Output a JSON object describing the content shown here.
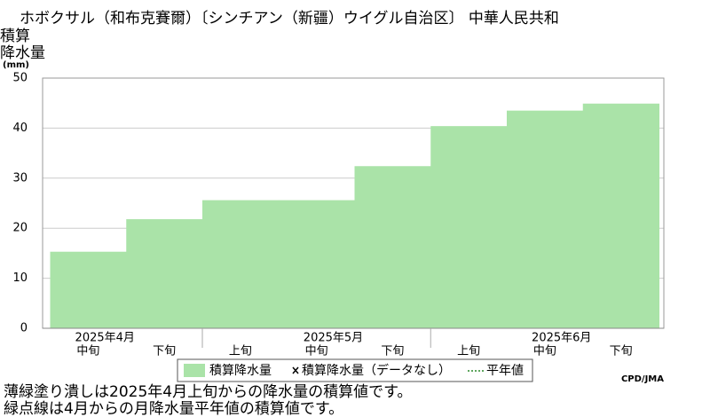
{
  "chart_data": {
    "type": "step-area",
    "title": "ホボクサル（和布克賽爾）〔シンチアン（新疆）ウイグル自治区〕 中華人民共和",
    "y_label": [
      "積算",
      "降水量"
    ],
    "y_unit": "(mm)",
    "months": [
      "2025年4月",
      "2025年5月",
      "2025年6月"
    ],
    "categories": [
      "中旬",
      "下旬",
      "上旬",
      "中旬",
      "下旬",
      "上旬",
      "中旬",
      "下旬"
    ],
    "series": [
      {
        "name": "積算降水量",
        "color": "#aae3a8",
        "values": [
          15.3,
          21.8,
          25.6,
          25.6,
          32.4,
          40.4,
          43.5,
          44.9
        ]
      }
    ],
    "legend_extra": [
      "積算降水量（データなし）",
      "平年値"
    ],
    "ylim": [
      0,
      50
    ],
    "yticks": [
      0,
      10,
      20,
      30,
      40,
      50
    ],
    "grid": true,
    "credit": "CPD/JMA",
    "notes": [
      "薄緑塗り潰しは2025年4月上旬からの降水量の積算値です。",
      "緑点線は4月からの月降水量平年値の積算値です。"
    ]
  }
}
